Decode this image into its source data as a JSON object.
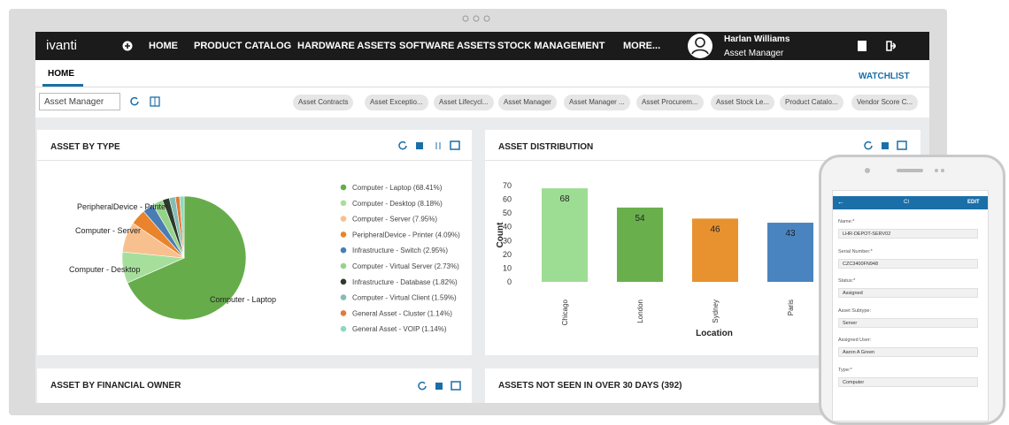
{
  "nav": {
    "logo": "ivanti",
    "items": [
      "HOME",
      "PRODUCT CATALOG",
      "HARDWARE ASSETS",
      "SOFTWARE ASSETS",
      "STOCK MANAGEMENT",
      "MORE..."
    ],
    "user_name": "Harlan Williams",
    "user_role": "Asset Manager"
  },
  "tabs": {
    "home": "HOME",
    "watchlist": "WATCHLIST"
  },
  "toolbar": {
    "select": "Asset Manager",
    "chips": [
      "Asset Contracts",
      "Asset Exceptio...",
      "Asset Lifecycl...",
      "Asset Manager",
      "Asset Manager ...",
      "Asset Procurem...",
      "Asset Stock Le...",
      "Product Catalo...",
      "Vendor Score C..."
    ]
  },
  "panels": [
    "ASSET BY TYPE",
    "ASSET DISTRIBUTION",
    "ASSET BY FINANCIAL OWNER",
    "ASSETS NOT SEEN IN OVER 30 DAYS (392)"
  ],
  "chart_data": [
    {
      "type": "pie",
      "categories": [
        "Computer - Laptop",
        "Computer - Desktop",
        "Computer - Server",
        "PeripheralDevice - Printer",
        "Infrastructure - Switch",
        "Computer - Virtual Server",
        "Infrastructure - Database",
        "Computer - Virtual Client",
        "General Asset - Cluster",
        "General Asset - VOIP"
      ],
      "values": [
        68.41,
        8.18,
        7.95,
        4.09,
        2.95,
        2.73,
        1.82,
        1.59,
        1.14,
        1.14
      ],
      "value_labels": [
        "Computer - Laptop (68.41%)",
        "Computer - Desktop (8.18%)",
        "Computer - Server (7.95%)",
        "PeripheralDevice - Printer (4.09%)",
        "Infrastructure - Switch (2.95%)",
        "Computer - Virtual Server (2.73%)",
        "Infrastructure - Database (1.82%)",
        "Computer - Virtual Client (1.59%)",
        "General Asset - Cluster (1.14%)",
        "General Asset - VOIP (1.14%)"
      ],
      "colors": [
        "#67ac4b",
        "#a6df9b",
        "#f8c08f",
        "#e9842c",
        "#4a7db3",
        "#95d487",
        "#2c3a2c",
        "#84bdb5",
        "#e07b39",
        "#8fd9bd"
      ]
    },
    {
      "type": "bar",
      "categories": [
        "Chicago",
        "London",
        "Sydney",
        "Paris"
      ],
      "values": [
        68,
        54,
        46,
        43
      ],
      "colors": [
        "#9ddc93",
        "#69b04d",
        "#e8922f",
        "#4a84c0"
      ],
      "xlabel": "Location",
      "ylabel": "Count",
      "ylim": [
        0,
        70
      ],
      "yticks": [
        0,
        10,
        20,
        30,
        40,
        50,
        60,
        70
      ]
    }
  ],
  "phone": {
    "title": "CI",
    "action": "EDIT",
    "fields": [
      [
        "Name:*",
        "LHR-DEPOT-SERV02"
      ],
      [
        "Serial Number:*",
        "CZC3400FN948"
      ],
      [
        "Status:*",
        "Assigned"
      ],
      [
        "Asset Subtype:",
        "Server"
      ],
      [
        "Assigned User:",
        "Aaron A Green"
      ],
      [
        "Type:*",
        "Computer"
      ]
    ]
  }
}
